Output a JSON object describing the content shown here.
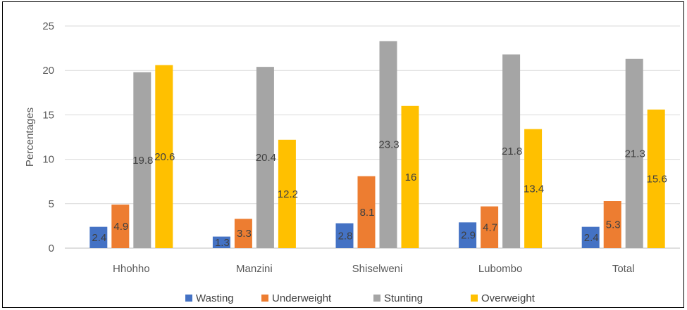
{
  "chart_data": {
    "type": "bar",
    "title": "",
    "xlabel": "",
    "ylabel": "Percentages",
    "ylim": [
      0,
      25
    ],
    "yticks": [
      0,
      5,
      10,
      15,
      20,
      25
    ],
    "grid": true,
    "legend_position": "bottom",
    "categories": [
      "Hhohho",
      "Manzini",
      "Shiselweni",
      "Lubombo",
      "Total"
    ],
    "series": [
      {
        "name": "Wasting",
        "color": "#4472C4",
        "values": [
          2.4,
          1.3,
          2.8,
          2.9,
          2.4
        ]
      },
      {
        "name": "Underweight",
        "color": "#ED7D31",
        "values": [
          4.9,
          3.3,
          8.1,
          4.7,
          5.3
        ]
      },
      {
        "name": "Stunting",
        "color": "#A5A5A5",
        "values": [
          19.8,
          20.4,
          23.3,
          21.8,
          21.3
        ]
      },
      {
        "name": "Overweight",
        "color": "#FFC000",
        "values": [
          20.6,
          12.2,
          16,
          13.4,
          15.6
        ]
      }
    ]
  }
}
